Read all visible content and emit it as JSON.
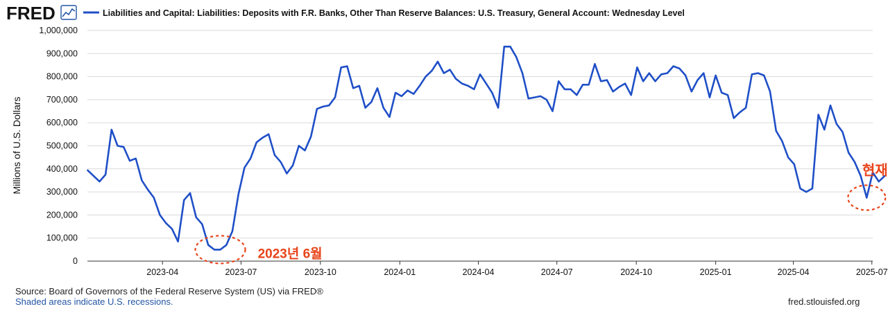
{
  "header": {
    "logo_text": "FRED",
    "legend_label": "Liabilities and Capital: Liabilities: Deposits with F.R. Banks, Other Than Reserve Balances: U.S. Treasury, General Account: Wednesday Level"
  },
  "footer": {
    "source": "Source: Board of Governors of the Federal Reserve System (US) via FRED®",
    "recessions": "Shaded areas indicate U.S. recessions.",
    "site": "fred.stlouisfed.org"
  },
  "colors": {
    "series": "#1f4fc7",
    "grid": "#d9d9d9",
    "annotation": "#e8441a"
  },
  "chart_data": {
    "type": "line",
    "title": "Liabilities and Capital: Liabilities: Deposits with F.R. Banks, Other Than Reserve Balances: U.S. Treasury, General Account: Wednesday Level",
    "xlabel": "",
    "ylabel": "Millions of U.S. Dollars",
    "ylim": [
      0,
      1000000
    ],
    "xlim": [
      "2023-01-04",
      "2025-07-02"
    ],
    "grid": true,
    "legend": "top-left",
    "yticks": [
      {
        "value": 0,
        "label": "0"
      },
      {
        "value": 100000,
        "label": "100,000"
      },
      {
        "value": 200000,
        "label": "200,000"
      },
      {
        "value": 300000,
        "label": "300,000"
      },
      {
        "value": 400000,
        "label": "400,000"
      },
      {
        "value": 500000,
        "label": "500,000"
      },
      {
        "value": 600000,
        "label": "600,000"
      },
      {
        "value": 700000,
        "label": "700,000"
      },
      {
        "value": 800000,
        "label": "800,000"
      },
      {
        "value": 900000,
        "label": "900,000"
      },
      {
        "value": 1000000,
        "label": "1,000,000"
      }
    ],
    "xticks": [
      "2023-04",
      "2023-07",
      "2023-10",
      "2024-01",
      "2024-04",
      "2024-07",
      "2024-10",
      "2025-01",
      "2025-04",
      "2025-07"
    ],
    "series": [
      {
        "name": "Liabilities and Capital: Liabilities: Deposits with F.R. Banks, Other Than Reserve Balances: U.S. Treasury, General Account: Wednesday Level",
        "start": "2023-01-04",
        "interval_days": 7,
        "values": [
          395000,
          370000,
          345000,
          375000,
          570000,
          500000,
          495000,
          435000,
          445000,
          350000,
          310000,
          275000,
          200000,
          165000,
          140000,
          85000,
          265000,
          295000,
          190000,
          160000,
          70000,
          50000,
          50000,
          70000,
          130000,
          290000,
          405000,
          445000,
          515000,
          535000,
          550000,
          460000,
          430000,
          380000,
          415000,
          500000,
          480000,
          540000,
          660000,
          670000,
          675000,
          710000,
          840000,
          845000,
          750000,
          760000,
          665000,
          690000,
          750000,
          665000,
          625000,
          730000,
          715000,
          740000,
          725000,
          760000,
          800000,
          825000,
          865000,
          815000,
          830000,
          790000,
          770000,
          760000,
          745000,
          810000,
          770000,
          730000,
          665000,
          930000,
          930000,
          885000,
          815000,
          705000,
          710000,
          715000,
          700000,
          650000,
          780000,
          745000,
          745000,
          720000,
          765000,
          765000,
          855000,
          780000,
          785000,
          735000,
          755000,
          770000,
          720000,
          840000,
          780000,
          815000,
          780000,
          810000,
          815000,
          845000,
          835000,
          805000,
          735000,
          785000,
          815000,
          710000,
          805000,
          730000,
          720000,
          620000,
          645000,
          665000,
          810000,
          815000,
          805000,
          735000,
          565000,
          520000,
          450000,
          420000,
          315000,
          300000,
          315000,
          635000,
          570000,
          675000,
          595000,
          560000,
          470000,
          430000,
          370000,
          275000,
          385000,
          345000,
          370000
        ]
      }
    ],
    "annotations": [
      {
        "label": "2023년 6월",
        "date": "2023-06-07"
      },
      {
        "label": "현재",
        "date": "2025-06-25"
      }
    ]
  }
}
